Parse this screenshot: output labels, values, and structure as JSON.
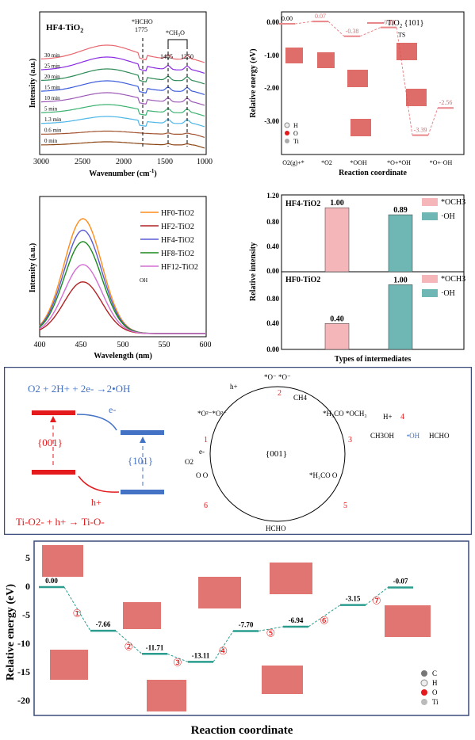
{
  "colors": {
    "red": "#e41a1c",
    "blue": "#4472c4",
    "pinkdash": "#f08080",
    "teal": "#2a9d8f",
    "pink": "#f4b6b9",
    "tealbar": "#6fb7b5"
  },
  "panel_a": {
    "title": "HF4-TiO",
    "title_sub": "2",
    "xlabel": "Wavenumber (cm",
    "xlabel_sup": "-1",
    "xlabel_end": ")",
    "ylabel": "Intensity (a.u.)",
    "ann1": "*HCHO",
    "ann1b": "1775",
    "ann2": "*CH",
    "ann2sub": "3",
    "ann2end": "O",
    "ann3": "1485",
    "ann4": "1250",
    "xticks": [
      "3000",
      "2500",
      "2000",
      "1500",
      "1000"
    ],
    "labels": [
      "30 min",
      "25 min",
      "20 min",
      "15 min",
      "10 min",
      "5 min",
      "1.3 min",
      "0.6 min",
      "0 min"
    ]
  },
  "panel_b": {
    "legend": "TiO",
    "legend_sub": "2",
    "legend_end": " {101}",
    "ylabel": "Relative energy (eV)",
    "xlabel": "Reaction coordinate",
    "yticks": [
      "0.00",
      "-1.00",
      "-2.00",
      "-3.00"
    ],
    "vals": [
      "0.00",
      "0.07",
      "-0.38",
      "-0.11",
      "-3.39",
      "-2.56"
    ],
    "ts": "TS",
    "xcats": [
      "O2(g)+*",
      "*O2",
      "*OOH",
      "*O+*OH",
      "*O+·OH"
    ]
  },
  "panel_c": {
    "xlabel": "Wavelength (nm)",
    "ylabel": "Intensity (a.u.)",
    "xticks": [
      "400",
      "450",
      "500",
      "550",
      "600"
    ],
    "legend": [
      "HF0-TiO2",
      "HF2-TiO2",
      "HF4-TiO2",
      "HF8-TiO2",
      "HF12-TiO2"
    ],
    "inset": "OH"
  },
  "panel_d": {
    "ylabel": "Relative intensity",
    "xlabel": "Types of intermediates",
    "yticks": [
      "1.20",
      "0.80",
      "0.40",
      "0.00"
    ],
    "top_title": "HF4-TiO2",
    "bot_title": "HF0-TiO2",
    "legend": [
      "*OCH3",
      "·OH"
    ]
  },
  "panel_e": {
    "eq1": "O2 + 2H+ + 2e- →2•OH",
    "eq2": "Ti-O2- + h+ → Ti-O-",
    "e_minus": "e-",
    "h_plus": "h+",
    "facet1": "{001}",
    "facet2": "{101}",
    "center": "{001}",
    "n1": "1",
    "n2": "2",
    "n3": "3",
    "n4": "4",
    "n5": "5",
    "n6": "6",
    "ch4": "CH4",
    "hplus2": "H+",
    "ch3oh": "CH3OH",
    "oh": "•OH",
    "hcho1": "HCHO",
    "hcho2": "HCHO",
    "o2": "O2",
    "eminus2": "e-",
    "hplus3": "h+"
  },
  "panel_f": {
    "ylabel": "Relative energy (eV)",
    "xlabel": "Reaction coordinate",
    "yticks": [
      "5",
      "0",
      "-5",
      "-10",
      "-15",
      "-20"
    ],
    "vals": [
      "0.00",
      "-7.66",
      "-11.71",
      "-13.11",
      "-7.70",
      "-6.94",
      "-3.15",
      "-0.07"
    ],
    "steps": [
      "①",
      "②",
      "③",
      "④",
      "⑤",
      "⑥",
      "⑦"
    ],
    "legend": [
      "C",
      "H",
      "O",
      "Ti"
    ]
  },
  "chart_data": [
    {
      "type": "line",
      "title": "HF4-TiO2",
      "xlabel": "Wavenumber (cm-1)",
      "ylabel": "Intensity (a.u.)",
      "xlim": [
        3000,
        1000
      ],
      "series": [
        {
          "name": "30 min"
        },
        {
          "name": "25 min"
        },
        {
          "name": "20 min"
        },
        {
          "name": "15 min"
        },
        {
          "name": "10 min"
        },
        {
          "name": "5 min"
        },
        {
          "name": "1.3 min"
        },
        {
          "name": "0.6 min"
        },
        {
          "name": "0 min"
        }
      ]
    },
    {
      "type": "line",
      "xlabel": "Reaction coordinate",
      "ylabel": "Relative energy (eV)",
      "ylim": [
        -4,
        0
      ],
      "categories": [
        "O2(g)+*",
        "*O2",
        "*OOH",
        "TS",
        "*O+*OH",
        "*O+·OH"
      ],
      "values": [
        0.0,
        0.07,
        -0.38,
        -0.11,
        -3.39,
        -2.56
      ]
    },
    {
      "type": "line",
      "xlabel": "Wavelength (nm)",
      "ylabel": "Intensity (a.u.)",
      "xlim": [
        400,
        600
      ],
      "series": [
        {
          "name": "HF0-TiO2",
          "peak": 1.0
        },
        {
          "name": "HF2-TiO2",
          "peak": 0.45
        },
        {
          "name": "HF4-TiO2",
          "peak": 0.9
        },
        {
          "name": "HF8-TiO2",
          "peak": 0.8
        },
        {
          "name": "HF12-TiO2",
          "peak": 0.6
        }
      ]
    },
    {
      "type": "bar",
      "xlabel": "Types of intermediates",
      "ylabel": "Relative intensity",
      "ylim": [
        0,
        1.2
      ],
      "series": [
        {
          "name": "HF4-TiO2",
          "categories": [
            "*OCH3",
            "·OH"
          ],
          "values": [
            1.0,
            0.89
          ]
        },
        {
          "name": "HF0-TiO2",
          "categories": [
            "*OCH3",
            "·OH"
          ],
          "values": [
            0.4,
            1.0
          ]
        }
      ]
    },
    {
      "type": "line",
      "xlabel": "Reaction coordinate",
      "ylabel": "Relative energy (eV)",
      "ylim": [
        -22,
        7
      ],
      "values": [
        0.0,
        -7.66,
        -11.71,
        -13.11,
        -7.7,
        -6.94,
        -3.15,
        -0.07
      ]
    }
  ]
}
